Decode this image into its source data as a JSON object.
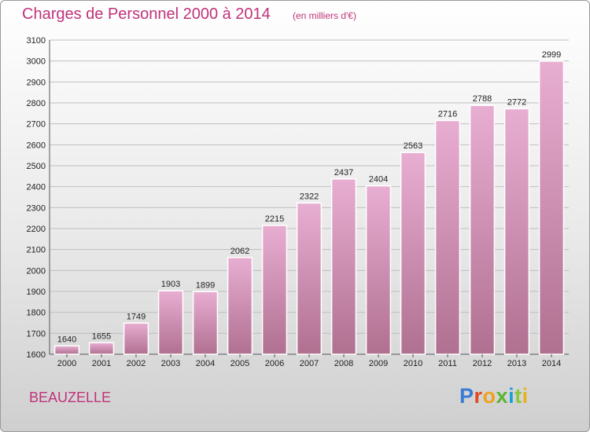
{
  "header": {
    "title": "Charges de Personnel 2000 à 2014",
    "subtitle": "(en milliers d'€)"
  },
  "footer": {
    "commune": "BEAUZELLE",
    "brand": "Proxiti",
    "brand_colors": [
      "#3a7bd5",
      "#e04a1f",
      "#f0a21c",
      "#5bb531",
      "#1a9fd9",
      "#8cc63f",
      "#e8b21a"
    ]
  },
  "colors": {
    "title": "#c0327a",
    "bar_top": "#e8aed2",
    "bar_bottom": "#b07090",
    "grid": "#bfbfbf"
  },
  "chart_data": {
    "type": "bar",
    "title": "Charges de Personnel 2000 à 2014",
    "subtitle": "(en milliers d'€)",
    "categories": [
      "2000",
      "2001",
      "2002",
      "2003",
      "2004",
      "2005",
      "2006",
      "2007",
      "2008",
      "2009",
      "2010",
      "2011",
      "2012",
      "2013",
      "2014"
    ],
    "values": [
      1640,
      1655,
      1749,
      1903,
      1899,
      2062,
      2215,
      2322,
      2437,
      2404,
      2563,
      2716,
      2788,
      2772,
      2999
    ],
    "ylim": [
      1600,
      3100
    ],
    "yticks": [
      1600,
      1700,
      1800,
      1900,
      2000,
      2100,
      2200,
      2300,
      2400,
      2500,
      2600,
      2700,
      2800,
      2900,
      3000,
      3100
    ],
    "grid": true,
    "data_labels": true,
    "xlabel": "",
    "ylabel": ""
  }
}
